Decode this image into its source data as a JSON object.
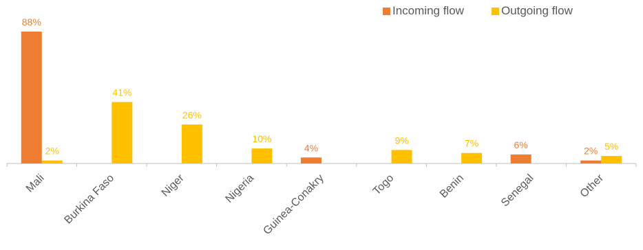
{
  "chart_data": {
    "type": "bar",
    "categories": [
      "Mali",
      "Burkina Faso",
      "Niger",
      "Nigeria",
      "Guinea-Conakry",
      "Togo",
      "Benin",
      "Senegal",
      "Other"
    ],
    "series": [
      {
        "name": "Incoming flow",
        "color": "#ED7D31",
        "values": [
          88,
          null,
          null,
          null,
          4,
          null,
          null,
          6,
          2
        ],
        "labels": [
          "88%",
          "",
          "",
          "",
          "4%",
          "",
          "",
          "6%",
          "2%"
        ]
      },
      {
        "name": "Outgoing flow",
        "color": "#FFC000",
        "values": [
          2,
          41,
          26,
          10,
          null,
          9,
          7,
          null,
          5
        ],
        "labels": [
          "2%",
          "41%",
          "26%",
          "10%",
          "",
          "9%",
          "7%",
          "",
          "5%"
        ]
      }
    ],
    "ylim": [
      0,
      88
    ],
    "grid": false,
    "legend": "top-right",
    "title": "",
    "xlabel": "",
    "ylabel": ""
  }
}
